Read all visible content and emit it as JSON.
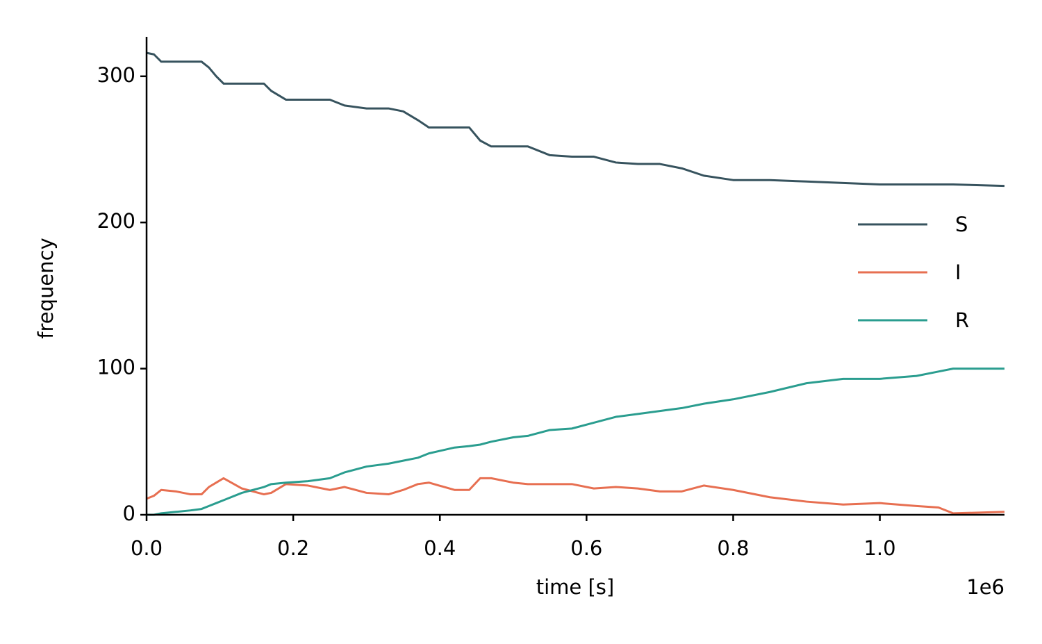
{
  "chart_data": {
    "type": "line",
    "xlabel": "time [s]",
    "ylabel": "frequency",
    "x_offset_label": "1e6",
    "x": [
      0,
      0.01,
      0.02,
      0.04,
      0.06,
      0.075,
      0.085,
      0.095,
      0.105,
      0.13,
      0.16,
      0.17,
      0.19,
      0.22,
      0.25,
      0.27,
      0.3,
      0.33,
      0.35,
      0.37,
      0.385,
      0.42,
      0.44,
      0.455,
      0.47,
      0.5,
      0.52,
      0.55,
      0.58,
      0.61,
      0.64,
      0.67,
      0.7,
      0.73,
      0.76,
      0.8,
      0.85,
      0.9,
      0.95,
      1.0,
      1.05,
      1.08,
      1.1,
      1.17
    ],
    "series": [
      {
        "name": "S",
        "color": "#37535e",
        "values": [
          316,
          315,
          310,
          310,
          310,
          310,
          306,
          300,
          295,
          295,
          295,
          290,
          284,
          284,
          284,
          280,
          278,
          278,
          276,
          270,
          265,
          265,
          265,
          256,
          252,
          252,
          252,
          246,
          245,
          245,
          241,
          240,
          240,
          237,
          232,
          229,
          229,
          228,
          227,
          226,
          226,
          226,
          226,
          225
        ]
      },
      {
        "name": "I",
        "color": "#e76f51",
        "values": [
          11,
          13,
          17,
          16,
          14,
          14,
          19,
          22,
          25,
          18,
          14,
          15,
          21,
          20,
          17,
          19,
          15,
          14,
          17,
          21,
          22,
          17,
          17,
          25,
          25,
          22,
          21,
          21,
          21,
          18,
          19,
          18,
          16,
          16,
          20,
          17,
          12,
          9,
          7,
          8,
          6,
          5,
          1,
          2
        ]
      },
      {
        "name": "R",
        "color": "#2a9d8f",
        "values": [
          0,
          0,
          1,
          2,
          3,
          4,
          6,
          8,
          10,
          15,
          19,
          21,
          22,
          23,
          25,
          29,
          33,
          35,
          37,
          39,
          42,
          46,
          47,
          48,
          50,
          53,
          54,
          58,
          59,
          63,
          67,
          69,
          71,
          73,
          76,
          79,
          84,
          90,
          93,
          93,
          95,
          98,
          100,
          100
        ]
      }
    ],
    "xlim": [
      0,
      1.17
    ],
    "ylim": [
      0,
      327
    ],
    "xticks": [
      {
        "value": 0,
        "label": "0.0"
      },
      0.2,
      0.4,
      0.6,
      0.8,
      {
        "value": 1,
        "label": "1.0"
      }
    ],
    "yticks": [
      0,
      100,
      200,
      300
    ],
    "legend": "right"
  }
}
